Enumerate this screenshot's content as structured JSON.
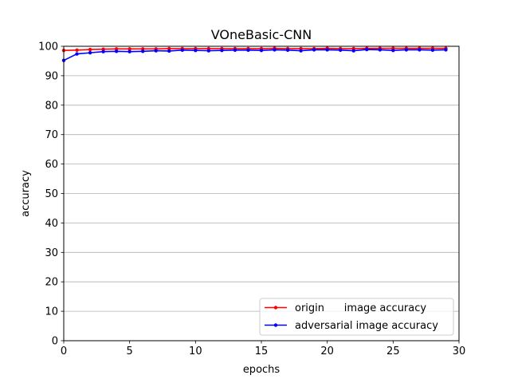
{
  "chart_data": {
    "type": "line",
    "title": "VOneBasic-CNN",
    "xlabel": "epochs",
    "ylabel": "accuracy",
    "xlim": [
      0,
      30
    ],
    "ylim": [
      0,
      100
    ],
    "xticks": [
      0,
      5,
      10,
      15,
      20,
      25,
      30
    ],
    "yticks": [
      0,
      10,
      20,
      30,
      40,
      50,
      60,
      70,
      80,
      90,
      100
    ],
    "grid": "horizontal",
    "legend_position": "lower-right",
    "x": [
      0,
      1,
      2,
      3,
      4,
      5,
      6,
      7,
      8,
      9,
      10,
      11,
      12,
      13,
      14,
      15,
      16,
      17,
      18,
      19,
      20,
      21,
      22,
      23,
      24,
      25,
      26,
      27,
      28,
      29
    ],
    "series": [
      {
        "name": "origin      image accuracy",
        "color": "#ff0000",
        "values": [
          98.6,
          98.7,
          98.9,
          99.0,
          99.1,
          99.1,
          99.1,
          99.1,
          99.2,
          99.2,
          99.2,
          99.2,
          99.2,
          99.2,
          99.2,
          99.2,
          99.3,
          99.2,
          99.2,
          99.2,
          99.3,
          99.2,
          99.2,
          99.3,
          99.3,
          99.3,
          99.3,
          99.3,
          99.3,
          99.3
        ]
      },
      {
        "name": "adversarial image accuracy",
        "color": "#0000ff",
        "values": [
          95.2,
          97.4,
          97.8,
          98.2,
          98.3,
          98.2,
          98.3,
          98.5,
          98.4,
          98.7,
          98.6,
          98.5,
          98.6,
          98.7,
          98.7,
          98.6,
          98.8,
          98.7,
          98.5,
          98.8,
          98.8,
          98.7,
          98.5,
          98.9,
          98.8,
          98.6,
          98.8,
          98.8,
          98.7,
          98.8
        ]
      }
    ]
  }
}
